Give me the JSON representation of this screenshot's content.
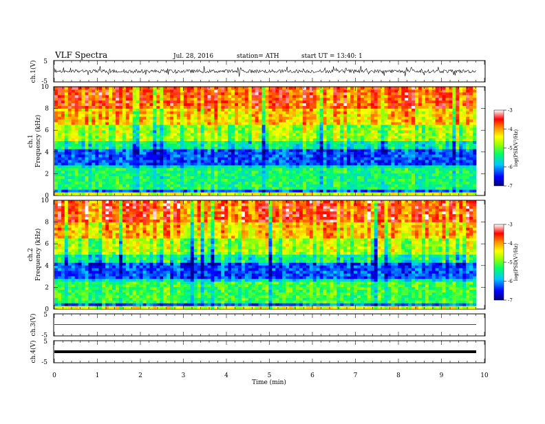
{
  "header": {
    "title": "VLF Spectra",
    "date": "Jul. 28, 2016",
    "station": "station= ATH",
    "start": "start UT = 13:40: 1"
  },
  "colors": {
    "spectrum": [
      "#00008b",
      "#0000ff",
      "#00bfff",
      "#00ff80",
      "#80ff00",
      "#ffff00",
      "#ff8000",
      "#ff0000",
      "#ffffff"
    ]
  },
  "chart_data": [
    {
      "type": "line",
      "panel": "ch1-waveform",
      "ylabel": "ch.1(V)",
      "ylim": [
        -5,
        5
      ],
      "yticks": [
        "5",
        "-5"
      ],
      "xlim": [
        0,
        10
      ],
      "description_series": [
        {
          "values_range": [
            -1.5,
            1.5
          ]
        }
      ]
    },
    {
      "type": "heatmap",
      "panel": "ch1-spectrogram",
      "ylabel_top": "ch.1",
      "ylabel": "Frequency (kHz)",
      "ylim": [
        0,
        10
      ],
      "yticks": [
        "0",
        "2",
        "4",
        "6",
        "8",
        "10"
      ],
      "xlim": [
        0,
        10
      ],
      "data_end_min": 9.8,
      "colorbar": {
        "label": "log(PSD(V²/Hz)",
        "range": [
          -7,
          -3
        ],
        "ticks": [
          "-3",
          "-4",
          "-5",
          "-6",
          "-7"
        ]
      }
    },
    {
      "type": "heatmap",
      "panel": "ch2-spectrogram",
      "ylabel_top": "ch.2",
      "ylabel": "Frequency (kHz)",
      "ylim": [
        0,
        10
      ],
      "yticks": [
        "0",
        "2",
        "4",
        "6",
        "8",
        "10"
      ],
      "xlim": [
        0,
        10
      ],
      "data_end_min": 9.8,
      "colorbar": {
        "label": "log(PSD(V²/Hz)",
        "range": [
          -7,
          -3
        ],
        "ticks": [
          "-3",
          "-4",
          "-5",
          "-6",
          "-7"
        ]
      }
    },
    {
      "type": "line",
      "panel": "ch3-waveform",
      "ylabel": "ch.3(V)",
      "ylim": [
        -5,
        5
      ],
      "yticks": [
        "5",
        "-5"
      ],
      "level": 0
    },
    {
      "type": "line",
      "panel": "ch4-waveform",
      "ylabel": "ch.4(V)",
      "ylim": [
        -5,
        5
      ],
      "yticks": [
        "5",
        "-5"
      ],
      "level": 0
    },
    {
      "type": "axis",
      "xlabel": "Time (min)",
      "xlim": [
        0,
        10
      ],
      "xticks": [
        "0",
        "1",
        "2",
        "3",
        "4",
        "5",
        "6",
        "7",
        "8",
        "9",
        "10"
      ]
    }
  ]
}
